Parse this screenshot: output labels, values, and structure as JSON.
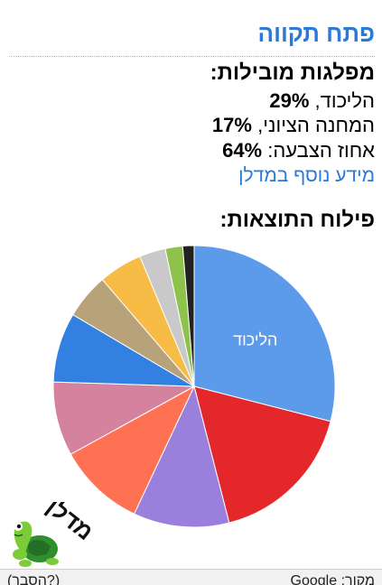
{
  "title": "פתח תקווה",
  "parties": {
    "heading": "מפלגות מובילות:",
    "items": [
      {
        "name": "הליכוד",
        "sep": ", ",
        "value": "29%"
      },
      {
        "name": "המחנה הציוני",
        "sep": ", ",
        "value": "17%"
      },
      {
        "name": "אחוז הצבעה",
        "sep": ": ",
        "value": "64%"
      }
    ],
    "more_link": "מידע נוסף במדלן"
  },
  "chart_heading": "פילוח התוצאות:",
  "chart_data": {
    "type": "pie",
    "start": "top",
    "direction": "clockwise",
    "slices": [
      {
        "value": 29,
        "color": "#5b9bea",
        "label": "הליכוד"
      },
      {
        "value": 17,
        "color": "#e3272b",
        "label": ""
      },
      {
        "value": 11,
        "color": "#9a7fdc",
        "label": ""
      },
      {
        "value": 10,
        "color": "#fe7152",
        "label": ""
      },
      {
        "value": 8.5,
        "color": "#d4829d",
        "label": ""
      },
      {
        "value": 8,
        "color": "#3281e2",
        "label": ""
      },
      {
        "value": 5.2,
        "color": "#b7a27a",
        "label": ""
      },
      {
        "value": 5,
        "color": "#f7bc45",
        "label": ""
      },
      {
        "value": 3,
        "color": "#c9c9c9",
        "label": ""
      },
      {
        "value": 2,
        "color": "#8fc24d",
        "label": ""
      },
      {
        "value": 1.3,
        "color": "#222222",
        "label": ""
      }
    ],
    "label_color": "#ffffff"
  },
  "logo": {
    "text": "מדלן",
    "icon": "turtle-icon"
  },
  "footer": {
    "source": "מקור: Google",
    "help": "(הסבר?)"
  }
}
